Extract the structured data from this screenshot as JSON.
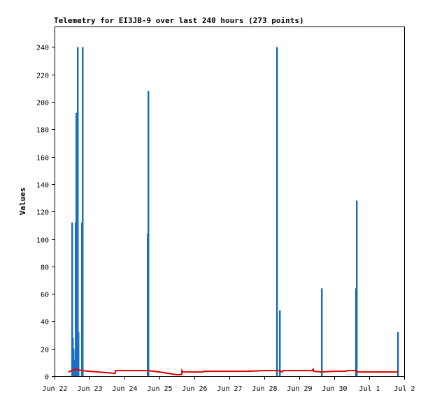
{
  "chart_data": {
    "type": "bar",
    "title": "Telemetry for EI3JB-9 over last 240 hours (273 points)",
    "xlabel": "",
    "ylabel": "Values",
    "ylim": [
      0,
      255
    ],
    "yticks": [
      0,
      20,
      40,
      60,
      80,
      100,
      120,
      140,
      160,
      180,
      200,
      220,
      240
    ],
    "xlim": [
      "Jun 22 00:00",
      "Jul 2 00:00"
    ],
    "xticks": [
      {
        "t": "Jun 22 00:00",
        "label": "Jun 22"
      },
      {
        "t": "Jun 23 00:00",
        "label": "Jun 23"
      },
      {
        "t": "Jun 24 00:00",
        "label": "Jun 24"
      },
      {
        "t": "Jun 25 00:00",
        "label": "Jun 25"
      },
      {
        "t": "Jun 26 00:00",
        "label": "Jun 26"
      },
      {
        "t": "Jun 27 00:00",
        "label": "Jun 27"
      },
      {
        "t": "Jun 28 00:00",
        "label": "Jun 28"
      },
      {
        "t": "Jun 29 00:00",
        "label": "Jun 29"
      },
      {
        "t": "Jun 30 00:00",
        "label": "Jun 30"
      },
      {
        "t": "Jul 1 00:00",
        "label": "Jul 1"
      },
      {
        "t": "Jul 2 00:00",
        "label": "Jul 2"
      }
    ],
    "grid": false,
    "series": [
      {
        "color": "#1a6fc4",
        "style": "bars",
        "points": [
          {
            "t": "Jun 22 11:50",
            "v": 112
          },
          {
            "t": "Jun 22 12:20",
            "v": 28
          },
          {
            "t": "Jun 22 12:50",
            "v": 20
          },
          {
            "t": "Jun 22 13:20",
            "v": 12
          },
          {
            "t": "Jun 22 14:20",
            "v": 112
          },
          {
            "t": "Jun 22 14:50",
            "v": 192
          },
          {
            "t": "Jun 22 15:20",
            "v": 192
          },
          {
            "t": "Jun 22 15:50",
            "v": 240
          },
          {
            "t": "Jun 22 16:20",
            "v": 32
          },
          {
            "t": "Jun 22 18:30",
            "v": 112
          },
          {
            "t": "Jun 22 19:00",
            "v": 240
          },
          {
            "t": "Jun 24 15:50",
            "v": 104
          },
          {
            "t": "Jun 24 16:20",
            "v": 208
          },
          {
            "t": "Jun 28 08:50",
            "v": 240
          },
          {
            "t": "Jun 28 10:30",
            "v": 48
          },
          {
            "t": "Jun 29 15:10",
            "v": 64
          },
          {
            "t": "Jun 30 14:40",
            "v": 64
          },
          {
            "t": "Jun 30 15:10",
            "v": 128
          },
          {
            "t": "Jul 1 19:40",
            "v": 32
          }
        ]
      },
      {
        "color": "#dd0000",
        "style": "line",
        "points": [
          {
            "t": "Jun 22 09:40",
            "v": 3
          },
          {
            "t": "Jun 22 11:50",
            "v": 4
          },
          {
            "t": "Jun 22 14:20",
            "v": 5
          },
          {
            "t": "Jun 22 19:00",
            "v": 4
          },
          {
            "t": "Jun 23 00:00",
            "v": 3.5
          },
          {
            "t": "Jun 23 12:00",
            "v": 2.5
          },
          {
            "t": "Jun 23 17:30",
            "v": 2
          },
          {
            "t": "Jun 23 18:00",
            "v": 4
          },
          {
            "t": "Jun 24 00:00",
            "v": 4
          },
          {
            "t": "Jun 24 16:20",
            "v": 4
          },
          {
            "t": "Jun 25 00:00",
            "v": 3
          },
          {
            "t": "Jun 25 12:00",
            "v": 1
          },
          {
            "t": "Jun 25 15:10",
            "v": 1
          },
          {
            "t": "Jun 25 15:30",
            "v": 4
          },
          {
            "t": "Jun 25 16:00",
            "v": 3
          },
          {
            "t": "Jun 26 00:00",
            "v": 3
          },
          {
            "t": "Jun 26 06:00",
            "v": 3
          },
          {
            "t": "Jun 26 06:30",
            "v": 3.5
          },
          {
            "t": "Jun 27 00:00",
            "v": 3.5
          },
          {
            "t": "Jun 27 12:00",
            "v": 3.5
          },
          {
            "t": "Jun 28 00:00",
            "v": 4
          },
          {
            "t": "Jun 28 10:30",
            "v": 4
          },
          {
            "t": "Jun 28 12:00",
            "v": 3
          },
          {
            "t": "Jun 28 13:00",
            "v": 4
          },
          {
            "t": "Jun 29 00:00",
            "v": 4
          },
          {
            "t": "Jun 29 09:00",
            "v": 4
          },
          {
            "t": "Jun 29 09:30",
            "v": 5
          },
          {
            "t": "Jun 29 10:00",
            "v": 3.5
          },
          {
            "t": "Jun 29 15:10",
            "v": 3
          },
          {
            "t": "Jun 30 00:00",
            "v": 3.5
          },
          {
            "t": "Jun 30 08:00",
            "v": 3.5
          },
          {
            "t": "Jun 30 09:00",
            "v": 4
          },
          {
            "t": "Jun 30 15:10",
            "v": 4
          },
          {
            "t": "Jun 30 16:00",
            "v": 3
          },
          {
            "t": "Jul 1 00:00",
            "v": 3
          },
          {
            "t": "Jul 1 19:40",
            "v": 3
          }
        ]
      }
    ]
  }
}
